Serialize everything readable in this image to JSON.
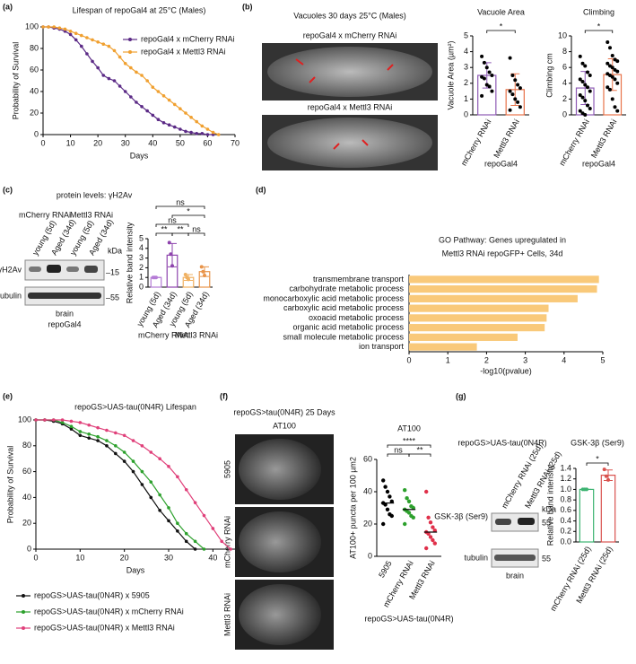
{
  "panel_labels": [
    "(a)",
    "(b)",
    "(c)",
    "(d)",
    "(e)",
    "(f)",
    "(g)"
  ],
  "b_images": {
    "title": "Vacuoles 30 days 25°C (Males)",
    "labels": [
      "repoGal4 x mCherry RNAi",
      "repoGal4 x Mettl3 RNAi"
    ]
  },
  "c_blot": {
    "title": "protein levels: γH2Av",
    "groups": [
      "mCherry RNAi",
      "Mettl3 RNAi"
    ],
    "lanes": [
      "young (5d)",
      "Aged (34d)",
      "young (5d)",
      "Aged (34d)"
    ],
    "unit": "kDa",
    "rows": [
      "γH2Av",
      "tubulin"
    ],
    "markers": [
      "–15",
      "–55"
    ],
    "tissue": "brain",
    "driver": "repoGal4"
  },
  "f_images": {
    "title": "repoGS>tau(0N4R) 25 Days",
    "stain": "AT100",
    "labels": [
      "5905",
      "mCherry RNAi",
      "Mettl3 RNAi"
    ]
  },
  "g_blot": {
    "title": "repoGS>UAS-tau(0N4R)",
    "lanes": [
      "mCherry RNAi (25d)",
      "Mettl3 RNAi (25d)"
    ],
    "unit": "kDa",
    "rows": [
      "GSK-3β (Ser9)",
      "tubulin"
    ],
    "markers": [
      "55",
      "55"
    ],
    "tissue": "brain"
  },
  "chart_data": [
    {
      "type": "line",
      "title": "Lifespan of repoGal4 at 25°C (Males)",
      "x_label": "Days",
      "y_label": "Probability of Survival",
      "x": [
        0,
        2,
        4,
        6,
        8,
        10,
        12,
        14,
        16,
        18,
        20,
        22,
        24,
        26,
        28,
        30,
        32,
        34,
        36,
        38,
        40,
        42,
        44,
        46,
        48,
        50,
        52,
        54,
        56,
        58,
        60,
        62,
        64
      ],
      "xlim": [
        0,
        70
      ],
      "xticks": [
        0,
        10,
        20,
        30,
        40,
        50,
        60,
        70
      ],
      "ylim": [
        0,
        100
      ],
      "yticks": [
        0,
        20,
        40,
        60,
        80,
        100
      ],
      "legend": "upper right",
      "series": [
        {
          "name": "repoGal4 x mCherry RNAi",
          "color": "#5b2a86",
          "values": [
            100,
            100,
            99,
            98,
            96,
            93,
            88,
            82,
            75,
            68,
            62,
            55,
            52,
            50,
            45,
            40,
            35,
            30,
            26,
            22,
            18,
            14,
            11,
            9,
            7,
            5,
            3,
            2,
            1,
            1,
            0,
            0,
            null
          ]
        },
        {
          "name": "repoGal4 x Mettl3 RNAi",
          "color": "#f0a030",
          "values": [
            100,
            100,
            100,
            99,
            98,
            96,
            94,
            92,
            90,
            88,
            86,
            84,
            82,
            78,
            72,
            66,
            62,
            58,
            55,
            50,
            44,
            40,
            36,
            32,
            28,
            24,
            20,
            16,
            12,
            8,
            5,
            2,
            0
          ]
        }
      ]
    },
    {
      "type": "bar",
      "title": "Vacuole Area",
      "y_label": "Vacuole Area (µm²)",
      "x_label": "repoGal4",
      "categories": [
        "mCherry RNAi",
        "Mettl3 RNAi"
      ],
      "values": [
        2.5,
        1.6
      ],
      "errors": [
        0.8,
        1.0
      ],
      "points": [
        [
          3.7,
          3.3,
          3.0,
          2.7,
          2.5,
          2.4,
          2.3,
          1.9,
          1.8,
          1.5,
          1.2
        ],
        [
          3.6,
          2.5,
          2.2,
          1.9,
          1.7,
          1.5,
          1.3,
          1.0,
          0.8,
          0.5,
          0.3
        ]
      ],
      "colors": [
        "#8e5bb5",
        "#e8734a"
      ],
      "point_color": "#000000",
      "ylim": [
        0,
        5
      ],
      "yticks": [
        0,
        1,
        2,
        3,
        4,
        5
      ],
      "significance": [
        "*"
      ]
    },
    {
      "type": "bar",
      "title": "Climbing",
      "y_label": "Climbing cm",
      "x_label": "repoGal4",
      "categories": [
        "mCherry RNAi",
        "Mettl3 RNAi"
      ],
      "values": [
        3.4,
        5.1
      ],
      "errors": [
        2.1,
        2.0
      ],
      "points": [
        [
          7.4,
          6.5,
          6.2,
          5.4,
          5.0,
          4.5,
          4.2,
          3.8,
          3.5,
          3.0,
          2.5,
          2.2,
          1.8,
          1.2,
          0.8,
          0.5,
          0.2,
          0
        ],
        [
          9.2,
          8.5,
          7.5,
          7.0,
          6.8,
          6.5,
          6.2,
          6.0,
          5.7,
          5.5,
          5.2,
          5.0,
          4.8,
          4.5,
          4.0,
          3.5,
          3.2,
          2.0,
          1.0,
          0.5
        ]
      ],
      "colors": [
        "#8e5bb5",
        "#e8734a"
      ],
      "point_color": "#000000",
      "ylim": [
        0,
        10
      ],
      "yticks": [
        0,
        2,
        4,
        6,
        8,
        10
      ],
      "significance": [
        "*"
      ]
    },
    {
      "type": "bar",
      "y_label": "Relative band intensity",
      "categories": [
        "young (5d)",
        "Aged (34d)",
        "young (5d)",
        "Aged (34d)"
      ],
      "groups": [
        "mCherry RNAi",
        "Mettl3 RNAi"
      ],
      "values": [
        1.0,
        3.3,
        1.0,
        1.6
      ],
      "errors": [
        0,
        1.2,
        0.3,
        0.5
      ],
      "points": [
        [
          1,
          1,
          1
        ],
        [
          4.6,
          3.4,
          2.2
        ],
        [
          1.3,
          1.0,
          0.8
        ],
        [
          2.1,
          1.6,
          1.2
        ]
      ],
      "colors": [
        "#b57bd6",
        "#8e44ad",
        "#f0b060",
        "#e8944a"
      ],
      "ylim": [
        0,
        5
      ],
      "yticks": [
        0,
        1,
        2,
        3,
        4,
        5
      ],
      "significance": [
        "ns",
        "*",
        "ns",
        "**",
        "**",
        "ns"
      ]
    },
    {
      "type": "barh",
      "title": "GO Pathway: Genes upregulated in",
      "subtitle": "Mettl3 RNAi repoGFP+ Cells, 34d",
      "x_label": "-log10(pvalue)",
      "categories": [
        "transmembrane transport",
        "carbohydrate metabolic process",
        "monocarboxylic acid metabolic process",
        "carboxylic acid metabolic process",
        "oxoacid metabolic process",
        "organic acid metabolic process",
        "small molecule metabolic process",
        "ion transport"
      ],
      "values": [
        4.9,
        4.85,
        4.35,
        3.6,
        3.55,
        3.5,
        2.8,
        1.75
      ],
      "color": "#f9c97a",
      "xlim": [
        0,
        5
      ],
      "xticks": [
        0,
        1,
        2,
        3,
        4,
        5
      ]
    },
    {
      "type": "line",
      "title": "repoGS>UAS-tau(0N4R) Lifespan",
      "x_label": "Days",
      "y_label": "Probability of Survival",
      "x": [
        0,
        2,
        4,
        6,
        8,
        10,
        12,
        14,
        16,
        18,
        20,
        22,
        24,
        26,
        28,
        30,
        32,
        34,
        36,
        38,
        40,
        42,
        44
      ],
      "xlim": [
        0,
        45
      ],
      "xticks": [
        0,
        10,
        20,
        30,
        40
      ],
      "ylim": [
        0,
        100
      ],
      "yticks": [
        0,
        20,
        40,
        60,
        80,
        100
      ],
      "legend": "below",
      "series": [
        {
          "name": "repoGS>UAS-tau(0N4R) x 5905",
          "color": "#111111",
          "values": [
            100,
            100,
            99,
            97,
            93,
            88,
            86,
            84,
            80,
            74,
            68,
            60,
            50,
            40,
            30,
            22,
            14,
            6,
            0,
            null,
            null,
            null,
            null
          ]
        },
        {
          "name": "repoGS>UAS-tau(0N4R) x mCherry RNAi",
          "color": "#2ca02c",
          "values": [
            100,
            100,
            100,
            98,
            95,
            91,
            89,
            87,
            84,
            80,
            75,
            68,
            60,
            52,
            42,
            32,
            20,
            12,
            6,
            0,
            null,
            null,
            null
          ]
        },
        {
          "name": "repoGS>UAS-tau(0N4R) x Mettl3 RNAi",
          "color": "#e0407a",
          "values": [
            100,
            100,
            100,
            100,
            99,
            98,
            96,
            94,
            92,
            90,
            88,
            84,
            80,
            75,
            70,
            64,
            56,
            46,
            36,
            26,
            16,
            6,
            0
          ]
        }
      ]
    },
    {
      "type": "strip",
      "title": "AT100",
      "y_label": "AT100+ puncta per 100  µm2",
      "x_label": "repoGS>UAS-tau(0N4R)",
      "categories": [
        "5905",
        "mCherry RNAi",
        "Mettl3 RNAi"
      ],
      "values": [
        33,
        29,
        15
      ],
      "points": [
        [
          47,
          43,
          40,
          37,
          34,
          33,
          32,
          29,
          26,
          25,
          20
        ],
        [
          41,
          36,
          34,
          31,
          30,
          29,
          28,
          27,
          25,
          24,
          20
        ],
        [
          40,
          24,
          21,
          18,
          16,
          15,
          14,
          12,
          10,
          8,
          5
        ]
      ],
      "colors": [
        "#000000",
        "#2ca02c",
        "#e0304a"
      ],
      "ylim": [
        0,
        60
      ],
      "yticks": [
        0,
        20,
        40,
        60
      ],
      "significance": [
        "****",
        "ns",
        "**"
      ]
    },
    {
      "type": "bar",
      "title": "GSK-3β (Ser9)",
      "y_label": "Relative band intensity",
      "categories": [
        "mCherry RNAi (25d)",
        "Mettl3 RNAi (25d)"
      ],
      "values": [
        1.0,
        1.27
      ],
      "errors": [
        0,
        0.1
      ],
      "points": [
        [
          1,
          1,
          1
        ],
        [
          1.38,
          1.25,
          1.18
        ]
      ],
      "colors": [
        "#3cb371",
        "#d9534f"
      ],
      "ylim": [
        0,
        1.4
      ],
      "yticks": [
        {
          "value": 0,
          "label": "0.0"
        },
        0.2,
        0.4,
        0.6,
        0.8,
        {
          "value": 1,
          "label": "1.0"
        },
        1.2,
        1.4
      ],
      "significance": [
        "*"
      ]
    }
  ]
}
